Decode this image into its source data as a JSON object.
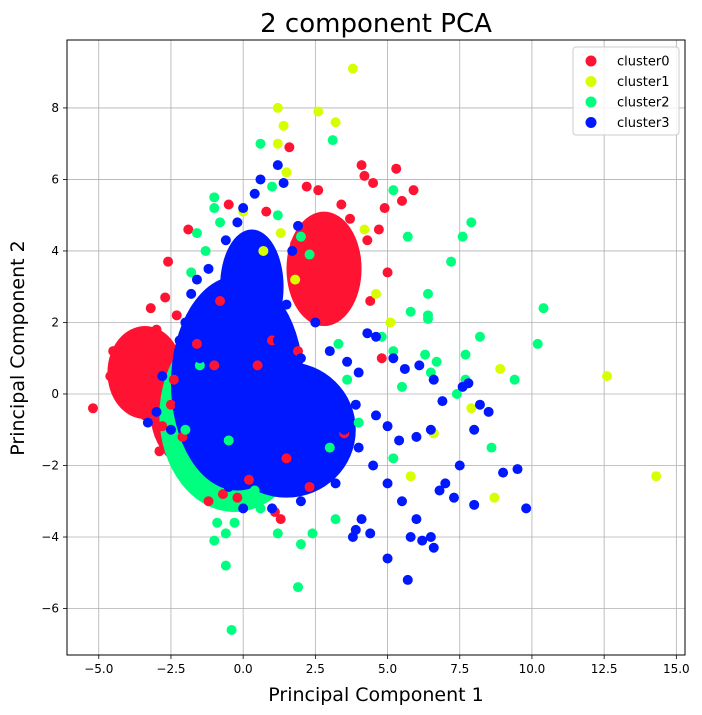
{
  "chart_data": {
    "type": "scatter",
    "title": "2 component PCA",
    "xlabel": "Principal Component 1",
    "ylabel": "Principal Component 2",
    "xlim": [
      -6.1,
      15.3
    ],
    "ylim": [
      -7.3,
      9.9
    ],
    "xticks": [
      -5.0,
      -2.5,
      0.0,
      2.5,
      5.0,
      7.5,
      10.0,
      12.5,
      15.0
    ],
    "xtick_labels": [
      "−5.0",
      "−2.5",
      "0.0",
      "2.5",
      "5.0",
      "7.5",
      "10.0",
      "12.5",
      "15.0"
    ],
    "yticks": [
      -6,
      -4,
      -2,
      0,
      2,
      4,
      6,
      8
    ],
    "ytick_labels": [
      "−6",
      "−4",
      "−2",
      "0",
      "2",
      "4",
      "6",
      "8"
    ],
    "grid": true,
    "legend_position": "top-right",
    "series": [
      {
        "name": "cluster0",
        "color": "#ff1333",
        "points": [
          [
            -5.2,
            -0.4
          ],
          [
            -4.6,
            0.5
          ],
          [
            -4.3,
            0.9
          ],
          [
            -4.0,
            1.1
          ],
          [
            -3.8,
            0.2
          ],
          [
            -3.5,
            1.6
          ],
          [
            -3.4,
            -0.6
          ],
          [
            -3.2,
            2.4
          ],
          [
            -3.0,
            1.8
          ],
          [
            -2.9,
            -1.6
          ],
          [
            -2.7,
            2.7
          ],
          [
            -2.6,
            3.7
          ],
          [
            -2.3,
            2.2
          ],
          [
            -2.1,
            -1.2
          ],
          [
            -1.9,
            4.6
          ],
          [
            -1.6,
            1.4
          ],
          [
            -1.2,
            -3.0
          ],
          [
            -1.0,
            0.8
          ],
          [
            -0.8,
            2.6
          ],
          [
            -0.7,
            -2.8
          ],
          [
            -0.5,
            5.3
          ],
          [
            0.2,
            -2.4
          ],
          [
            0.8,
            5.1
          ],
          [
            1.1,
            -3.3
          ],
          [
            1.3,
            -3.5
          ],
          [
            1.6,
            6.9
          ],
          [
            1.8,
            4.2
          ],
          [
            2.2,
            5.8
          ],
          [
            2.3,
            -2.6
          ],
          [
            2.6,
            5.7
          ],
          [
            2.8,
            3.4
          ],
          [
            3.0,
            2.5
          ],
          [
            3.1,
            4.6
          ],
          [
            3.4,
            5.3
          ],
          [
            3.5,
            -1.1
          ],
          [
            3.7,
            4.9
          ],
          [
            3.9,
            3.8
          ],
          [
            4.1,
            6.4
          ],
          [
            4.2,
            6.1
          ],
          [
            4.4,
            2.6
          ],
          [
            4.5,
            5.9
          ],
          [
            4.7,
            4.6
          ],
          [
            4.8,
            1.0
          ],
          [
            4.9,
            5.2
          ],
          [
            5.3,
            6.3
          ],
          [
            5.5,
            5.4
          ],
          [
            5.9,
            5.7
          ],
          [
            5.0,
            3.4
          ],
          [
            4.3,
            4.3
          ],
          [
            3.3,
            3.9
          ],
          [
            2.9,
            4.8
          ],
          [
            1.9,
            1.2
          ],
          [
            1.5,
            -1.8
          ],
          [
            -0.2,
            -2.9
          ],
          [
            -3.7,
            0.6
          ],
          [
            -4.1,
            -0.3
          ],
          [
            -2.8,
            -0.9
          ],
          [
            -3.3,
            0.0
          ],
          [
            -2.4,
            0.4
          ],
          [
            -4.5,
            1.2
          ],
          [
            -3.9,
            1.4
          ],
          [
            -3.1,
            1.0
          ],
          [
            -3.6,
            -0.1
          ],
          [
            -4.2,
            0.6
          ],
          [
            -2.5,
            -0.3
          ],
          [
            0.5,
            0.8
          ],
          [
            1.0,
            1.5
          ],
          [
            2.0,
            3.0
          ],
          [
            2.5,
            3.6
          ],
          [
            3.6,
            4.4
          ]
        ]
      },
      {
        "name": "cluster1",
        "color": "#d7ff00",
        "points": [
          [
            3.8,
            9.1
          ],
          [
            1.2,
            8.0
          ],
          [
            2.6,
            7.9
          ],
          [
            3.2,
            7.6
          ],
          [
            1.4,
            7.5
          ],
          [
            1.2,
            7.0
          ],
          [
            1.5,
            6.2
          ],
          [
            0.0,
            5.1
          ],
          [
            4.2,
            4.6
          ],
          [
            1.8,
            3.2
          ],
          [
            4.6,
            2.8
          ],
          [
            5.1,
            2.0
          ],
          [
            8.9,
            0.7
          ],
          [
            12.6,
            0.5
          ],
          [
            6.6,
            -1.1
          ],
          [
            7.9,
            -0.4
          ],
          [
            8.7,
            -2.9
          ],
          [
            14.3,
            -2.3
          ],
          [
            5.8,
            -2.3
          ],
          [
            1.3,
            4.5
          ],
          [
            0.7,
            4.0
          ]
        ]
      },
      {
        "name": "cluster2",
        "color": "#00ff7f",
        "points": [
          [
            -1.0,
            5.5
          ],
          [
            -1.0,
            5.2
          ],
          [
            -1.6,
            4.5
          ],
          [
            -0.8,
            4.8
          ],
          [
            0.6,
            7.0
          ],
          [
            3.1,
            7.1
          ],
          [
            1.0,
            5.8
          ],
          [
            1.2,
            5.0
          ],
          [
            5.2,
            5.7
          ],
          [
            5.7,
            4.4
          ],
          [
            7.6,
            4.4
          ],
          [
            7.9,
            4.8
          ],
          [
            7.2,
            3.7
          ],
          [
            6.4,
            2.8
          ],
          [
            5.8,
            2.3
          ],
          [
            6.4,
            2.2
          ],
          [
            6.4,
            2.1
          ],
          [
            8.2,
            1.6
          ],
          [
            10.4,
            2.4
          ],
          [
            10.2,
            1.4
          ],
          [
            7.7,
            1.1
          ],
          [
            6.3,
            1.1
          ],
          [
            6.7,
            0.9
          ],
          [
            9.4,
            0.4
          ],
          [
            7.7,
            0.4
          ],
          [
            6.5,
            0.6
          ],
          [
            7.4,
            0.0
          ],
          [
            5.5,
            0.2
          ],
          [
            8.6,
            -1.5
          ],
          [
            5.2,
            -1.8
          ],
          [
            -2.0,
            -2.0
          ],
          [
            -1.5,
            -2.8
          ],
          [
            -0.9,
            -3.6
          ],
          [
            -0.6,
            -3.9
          ],
          [
            -1.0,
            -4.1
          ],
          [
            -0.6,
            -4.8
          ],
          [
            -0.4,
            -6.6
          ],
          [
            1.9,
            -5.4
          ],
          [
            2.0,
            -4.2
          ],
          [
            2.4,
            -3.9
          ],
          [
            1.2,
            -3.9
          ],
          [
            3.2,
            -3.5
          ],
          [
            0.6,
            -3.2
          ],
          [
            -0.3,
            -3.6
          ],
          [
            3.3,
            1.4
          ],
          [
            3.6,
            0.4
          ],
          [
            4.8,
            1.6
          ],
          [
            5.2,
            1.2
          ],
          [
            -1.8,
            3.4
          ],
          [
            -1.3,
            4.0
          ],
          [
            2.0,
            4.4
          ],
          [
            2.3,
            3.9
          ],
          [
            -1.5,
            0.8
          ],
          [
            -2.0,
            -1.0
          ],
          [
            4.0,
            -0.8
          ],
          [
            3.0,
            -1.5
          ],
          [
            -0.5,
            -1.3
          ],
          [
            0.4,
            -2.7
          ]
        ]
      },
      {
        "name": "cluster3",
        "color": "#0018ff",
        "points": [
          [
            -2.0,
            2.0
          ],
          [
            -1.5,
            1.0
          ],
          [
            -1.0,
            0.0
          ],
          [
            -0.5,
            -1.0
          ],
          [
            0.0,
            -1.5
          ],
          [
            0.5,
            -2.0
          ],
          [
            1.0,
            -1.0
          ],
          [
            1.5,
            0.0
          ],
          [
            2.0,
            1.0
          ],
          [
            2.5,
            0.5
          ],
          [
            3.0,
            -0.5
          ],
          [
            3.5,
            -1.0
          ],
          [
            4.0,
            -1.5
          ],
          [
            4.5,
            -2.0
          ],
          [
            5.0,
            -2.5
          ],
          [
            5.5,
            -3.0
          ],
          [
            6.0,
            -3.5
          ],
          [
            6.5,
            -4.0
          ],
          [
            7.0,
            -2.5
          ],
          [
            7.5,
            -2.0
          ],
          [
            8.0,
            -1.0
          ],
          [
            8.5,
            -0.5
          ],
          [
            9.0,
            -2.2
          ],
          [
            9.5,
            -2.1
          ],
          [
            9.8,
            -3.2
          ],
          [
            8.0,
            -3.1
          ],
          [
            7.3,
            -2.9
          ],
          [
            6.8,
            -2.7
          ],
          [
            6.2,
            -4.1
          ],
          [
            6.6,
            -4.3
          ],
          [
            5.8,
            -4.0
          ],
          [
            5.7,
            -5.2
          ],
          [
            5.0,
            -4.6
          ],
          [
            4.4,
            -3.9
          ],
          [
            3.9,
            -3.8
          ],
          [
            3.8,
            -4.0
          ],
          [
            4.1,
            -3.5
          ],
          [
            2.0,
            -3.0
          ],
          [
            1.0,
            -3.2
          ],
          [
            0.0,
            -3.2
          ],
          [
            -0.5,
            -2.6
          ],
          [
            0.4,
            -2.1
          ],
          [
            -2.5,
            -1.0
          ],
          [
            -3.0,
            -0.5
          ],
          [
            -3.3,
            -0.8
          ],
          [
            -2.8,
            0.5
          ],
          [
            -2.2,
            1.5
          ],
          [
            -1.8,
            2.8
          ],
          [
            -1.2,
            3.5
          ],
          [
            -0.6,
            4.3
          ],
          [
            -0.2,
            4.8
          ],
          [
            0.0,
            5.2
          ],
          [
            0.4,
            5.6
          ],
          [
            0.6,
            6.0
          ],
          [
            1.2,
            6.4
          ],
          [
            1.4,
            5.9
          ],
          [
            1.9,
            4.7
          ],
          [
            1.7,
            4.0
          ],
          [
            1.0,
            3.0
          ],
          [
            0.5,
            2.0
          ],
          [
            1.5,
            2.5
          ],
          [
            2.5,
            2.0
          ],
          [
            3.0,
            1.2
          ],
          [
            3.6,
            0.9
          ],
          [
            4.0,
            0.6
          ],
          [
            4.3,
            1.7
          ],
          [
            4.6,
            1.6
          ],
          [
            5.2,
            1.0
          ],
          [
            5.6,
            0.7
          ],
          [
            6.1,
            0.8
          ],
          [
            6.6,
            0.4
          ],
          [
            6.9,
            -0.2
          ],
          [
            7.6,
            0.2
          ],
          [
            7.8,
            0.3
          ],
          [
            8.2,
            -0.3
          ],
          [
            6.5,
            -1.0
          ],
          [
            6.0,
            -1.2
          ],
          [
            5.4,
            -1.3
          ],
          [
            5.0,
            -0.9
          ],
          [
            4.6,
            -0.6
          ],
          [
            3.9,
            -0.3
          ],
          [
            3.4,
            -0.1
          ],
          [
            2.8,
            0.2
          ],
          [
            2.2,
            -0.6
          ],
          [
            1.6,
            -1.4
          ],
          [
            1.0,
            -2.2
          ],
          [
            0.4,
            -0.6
          ],
          [
            -0.4,
            0.3
          ],
          [
            -1.4,
            -0.5
          ],
          [
            -2.2,
            -0.3
          ],
          [
            0.2,
            1.0
          ],
          [
            0.8,
            0.5
          ],
          [
            -0.8,
            1.8
          ],
          [
            -1.6,
            3.2
          ],
          [
            0.0,
            3.6
          ],
          [
            1.2,
            1.5
          ],
          [
            2.4,
            -1.8
          ],
          [
            3.2,
            -2.5
          ],
          [
            -0.3,
            -2.2
          ],
          [
            1.8,
            -2.6
          ]
        ]
      }
    ]
  }
}
